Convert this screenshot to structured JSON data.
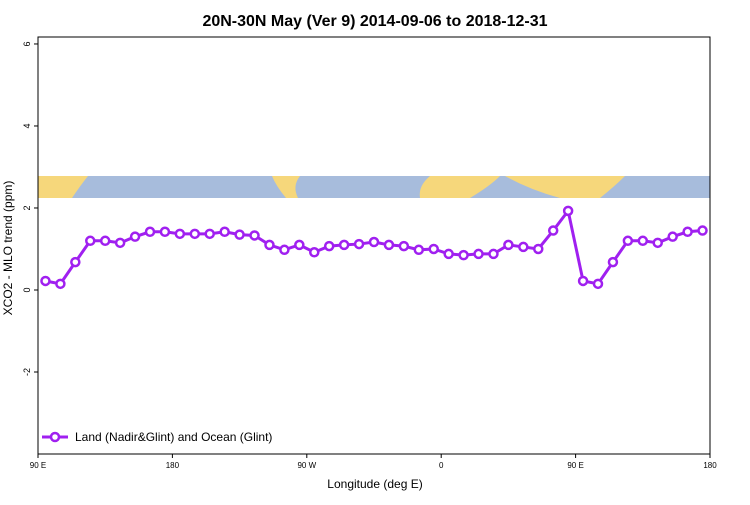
{
  "chart_data": {
    "type": "line",
    "title": "20N-30N May (Ver 9)   2014-09-06 to 2018-12-31",
    "xlabel": "Longitude (deg E)",
    "ylabel": "XCO2 - MLO trend (ppm)",
    "x": [
      95,
      105,
      115,
      125,
      135,
      145,
      155,
      165,
      175,
      185,
      195,
      205,
      215,
      225,
      235,
      245,
      255,
      265,
      275,
      285,
      295,
      305,
      315,
      325,
      335,
      345,
      355,
      365,
      375,
      385,
      395,
      405,
      415,
      425,
      435,
      445,
      455,
      465,
      475,
      485,
      495,
      505,
      515,
      525,
      535
    ],
    "series": [
      {
        "name": "Land (Nadir&Glint) and Ocean (Glint)",
        "color": "#a020f0",
        "values": [
          0.22,
          0.15,
          0.68,
          1.2,
          1.2,
          1.15,
          1.3,
          1.42,
          1.42,
          1.37,
          1.37,
          1.37,
          1.42,
          1.35,
          1.33,
          1.1,
          0.98,
          1.1,
          0.92,
          1.07,
          1.1,
          1.12,
          1.17,
          1.1,
          1.07,
          0.98,
          1.0,
          0.88,
          0.85,
          0.88,
          0.88,
          1.1,
          1.05,
          1.0,
          1.45,
          1.93,
          0.22,
          0.15,
          0.68,
          1.2,
          1.2,
          1.15,
          1.3,
          1.42,
          1.45
        ]
      }
    ],
    "xlim": [
      90,
      540
    ],
    "xticks": [
      {
        "value": 90,
        "label": "90 E"
      },
      {
        "value": 180,
        "label": "180"
      },
      {
        "value": 270,
        "label": "90 W"
      },
      {
        "value": 360,
        "label": "0"
      },
      {
        "value": 450,
        "label": "90 E"
      },
      {
        "value": 540,
        "label": "180"
      }
    ],
    "ylim": [
      -4,
      6.17
    ],
    "yticks": [
      -2,
      0,
      2,
      4,
      6
    ],
    "legend": "bottom-left"
  }
}
